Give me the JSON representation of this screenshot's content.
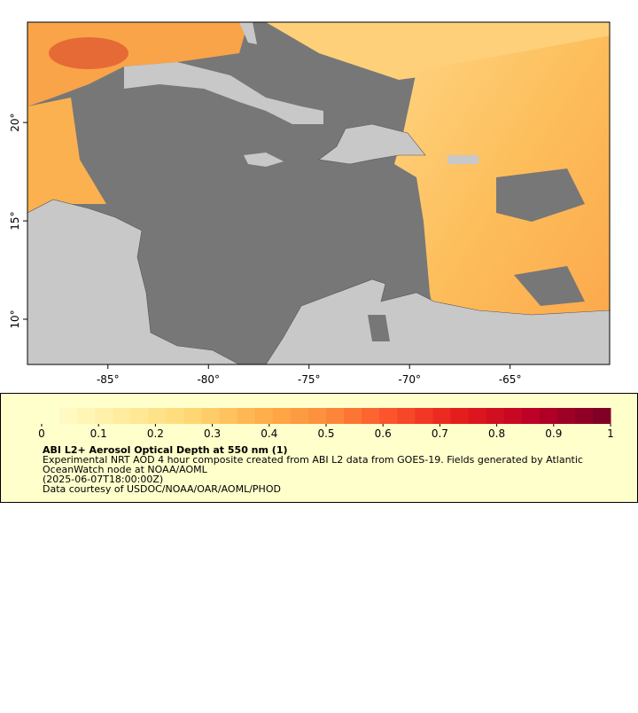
{
  "map": {
    "lon_extent": [
      -89.0,
      -60.05
    ],
    "lat_extent": [
      7.7,
      25.1
    ],
    "lon_ticks": [
      {
        "value": -85,
        "label": "-85°"
      },
      {
        "value": -80,
        "label": "-80°"
      },
      {
        "value": -75,
        "label": "-75°"
      },
      {
        "value": -70,
        "label": "-70°"
      },
      {
        "value": -65,
        "label": "-65°"
      }
    ],
    "lat_ticks": [
      {
        "value": 10,
        "label": "10°"
      },
      {
        "value": 15,
        "label": "15°"
      },
      {
        "value": 20,
        "label": "20°"
      }
    ]
  },
  "colorbar": {
    "range": [
      0,
      1
    ],
    "ticks": [
      0,
      0.1,
      0.2,
      0.3,
      0.4,
      0.5,
      0.6,
      0.7,
      0.8,
      0.9,
      1
    ],
    "colors": [
      "#ffffcc",
      "#ffeda0",
      "#fed976",
      "#feb24c",
      "#fd8d3c",
      "#fc4e2a",
      "#e31a1c",
      "#bd0026",
      "#800026"
    ]
  },
  "legend": {
    "title": "ABI L2+ Aerosol Optical Depth at 550 nm (1)",
    "lines": [
      "Experimental NRT AOD 4 hour composite created from ABI L2 data from GOES-19. Fields generated by Atlantic",
      "OceanWatch node at NOAA/AOML",
      "(2025-06-07T18:00:00Z)",
      "Data courtesy of USDOC/NOAA/OAR/AOML/PHOD"
    ]
  }
}
